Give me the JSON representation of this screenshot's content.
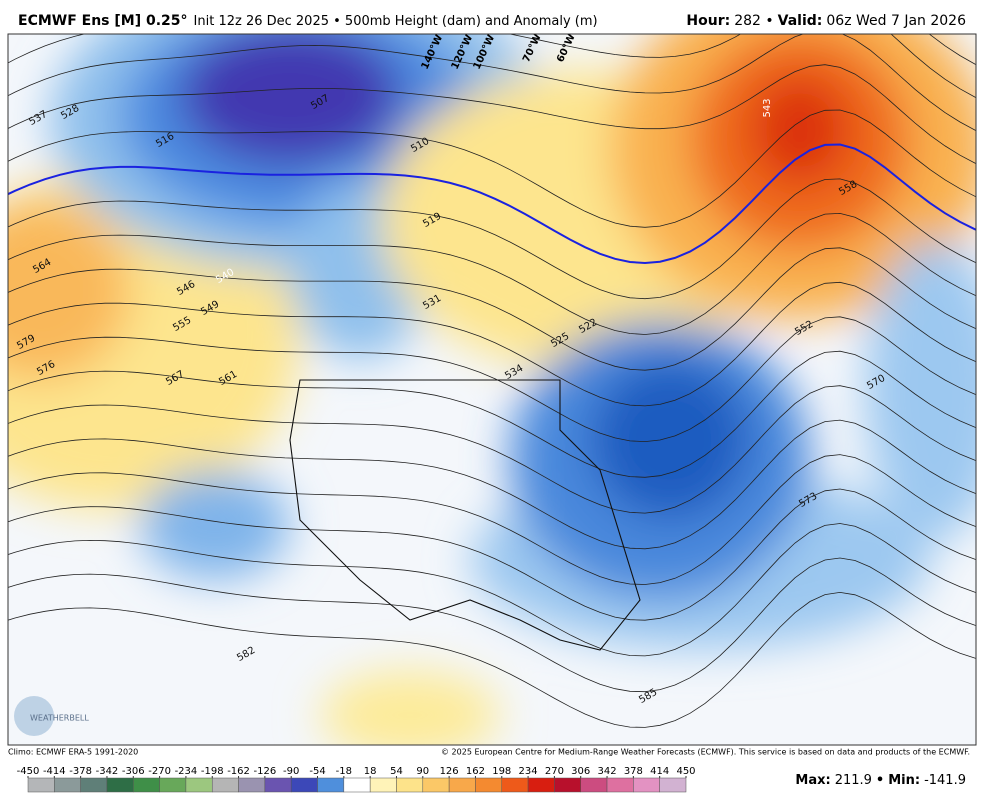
{
  "header": {
    "title_bold": "ECMWF Ens [M] 0.25°",
    "title_rest": "Init 12z 26 Dec 2025 • 500mb Height (dam) and Anomaly (m)",
    "hour_label": "Hour:",
    "hour_value": "282 •",
    "valid_label": "Valid:",
    "valid_value": "06z Wed 7 Jan 2026"
  },
  "map": {
    "contour_labels": [
      "537",
      "528",
      "516",
      "507",
      "510",
      "519",
      "540",
      "546",
      "549",
      "555",
      "564",
      "579",
      "576",
      "567",
      "561",
      "531",
      "525",
      "522",
      "534",
      "543",
      "558",
      "552",
      "570",
      "573",
      "582",
      "585"
    ],
    "lon_labels": [
      "140°W",
      "120°W",
      "100°W",
      "70°W",
      "60°W"
    ],
    "logo": "WEATHERBELL"
  },
  "footer": {
    "climo": "Climo: ECMWF ERA-5 1991-2020",
    "copyright": "© 2025 European Centre for Medium-Range Weather Forecasts (ECMWF). This service is based on data and products of the ECMWF.",
    "max_label": "Max:",
    "max": 211.9,
    "min_label": "Min:",
    "min": -141.9
  },
  "colorbar": {
    "ticks": [
      -450,
      -414,
      -378,
      -342,
      -306,
      -270,
      -234,
      -198,
      -162,
      -126,
      -90,
      -54,
      -18,
      18,
      54,
      90,
      126,
      162,
      198,
      234,
      270,
      306,
      342,
      378,
      414,
      450
    ],
    "colors": [
      "#b4b6b8",
      "#8b9a9a",
      "#5f7f78",
      "#2e6e46",
      "#3f8f48",
      "#68a85a",
      "#9cc77f",
      "#b5b5b5",
      "#9a93b0",
      "#6a54b0",
      "#3c48b8",
      "#4f8fdc",
      "#ffffff",
      "#fff3b8",
      "#fde38a",
      "#fbc867",
      "#f8a84a",
      "#f48a30",
      "#ee5a1a",
      "#d81e10",
      "#b8102c",
      "#cc4c80",
      "#de70a0",
      "#e392c2",
      "#d2b2d2"
    ]
  }
}
